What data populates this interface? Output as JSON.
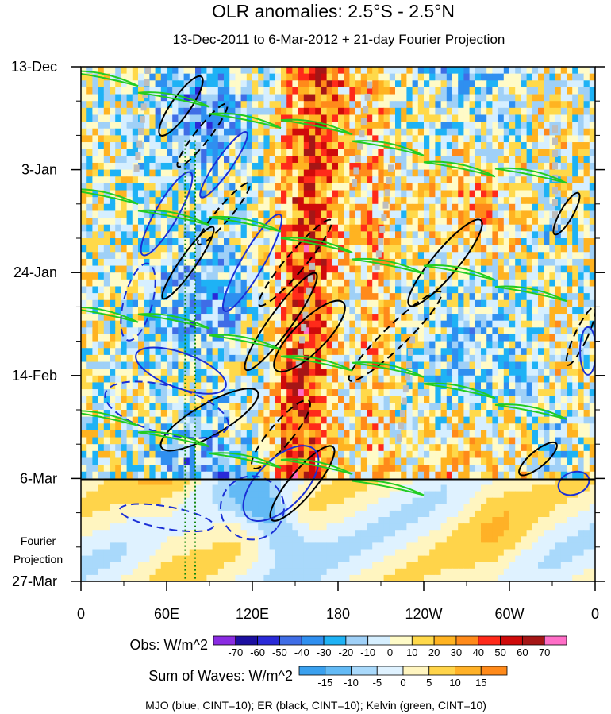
{
  "chart_data": {
    "type": "heatmap",
    "title": "OLR anomalies: 2.5°S - 2.5°N",
    "subtitle": "13-Dec-2011 to 6-Mar-2012 + 21-day Fourier Projection",
    "y_axis": {
      "tick_labels": [
        "13-Dec",
        "3-Jan",
        "24-Jan",
        "14-Feb",
        "6-Mar",
        "27-Mar"
      ],
      "range": [
        "2011-12-13",
        "2012-03-27"
      ],
      "direction": "time increases downward"
    },
    "x_axis": {
      "tick_labels": [
        "0",
        "60E",
        "120E",
        "180",
        "120W",
        "60W",
        "0"
      ],
      "range_degrees_east": [
        0,
        360
      ]
    },
    "observation_end": "6-Mar",
    "projection_label": "Fourier\nProjection",
    "dotted_reference_longitudes": [
      73,
      80
    ],
    "obs_colorbar": {
      "label": "Obs: W/m^2",
      "levels": [
        -70,
        -60,
        -50,
        -40,
        -30,
        -20,
        -10,
        0,
        10,
        20,
        30,
        40,
        50,
        60,
        70
      ],
      "colors": [
        "#8a2be2",
        "#1c0fa0",
        "#2a2ad8",
        "#3f6de6",
        "#2f8ff0",
        "#1eb2f5",
        "#9fd0f7",
        "#d6efff",
        "#fffbc7",
        "#ffd94a",
        "#ffb321",
        "#ff8a1a",
        "#ff2a1a",
        "#cf0a0a",
        "#a51616",
        "#ff6ec7"
      ]
    },
    "waves_colorbar": {
      "label": "Sum of Waves: W/m^2",
      "levels": [
        -15,
        -10,
        -5,
        0,
        5,
        10,
        15
      ],
      "colors": [
        "#3aa0ee",
        "#63baf5",
        "#a9d9fb",
        "#dff2ff",
        "#fff5c0",
        "#ffd44a",
        "#ffb127",
        "#ff8a1a"
      ]
    },
    "footnote": "MJO (blue, CINT=10); ER (black, CINT=10); Kelvin (green, CINT=10)",
    "grid": false
  },
  "colors": {
    "mjo": "#1a2fd6",
    "er": "#000000",
    "kelvin": "#22cc22",
    "missing": "#bdbdbd",
    "dotted": "#118811"
  }
}
